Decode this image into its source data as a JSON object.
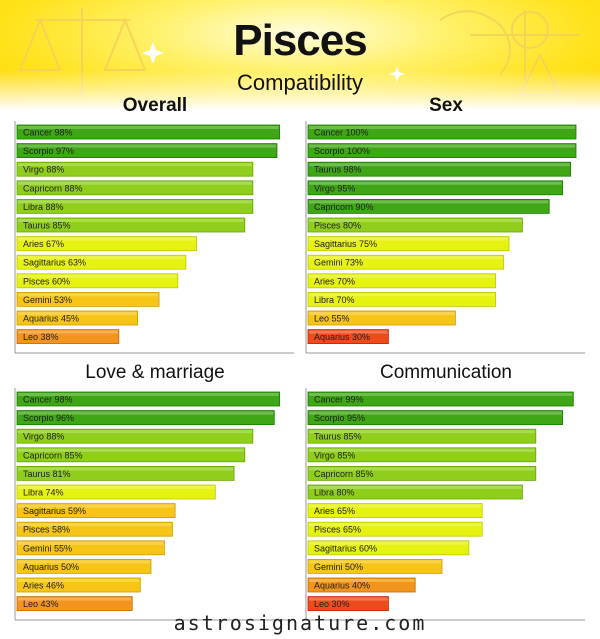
{
  "header": {
    "title": "Pisces",
    "subtitle": "Compatibility"
  },
  "watermark": "astrosignature.com",
  "colors": {
    "high": "#3fa615",
    "mid_high": "#8fcf1c",
    "mid": "#e6f20f",
    "mid_low": "#f6c516",
    "low": "#f2941d",
    "lowest": "#ee4a1c"
  },
  "chart_data": [
    {
      "type": "bar",
      "orientation": "horizontal",
      "title": "Overall",
      "xlim": [
        0,
        100
      ],
      "bars": [
        {
          "sign": "Cancer",
          "value": 98,
          "label": "Cancer 98%"
        },
        {
          "sign": "Scorpio",
          "value": 97,
          "label": "Scorpio 97%"
        },
        {
          "sign": "Virgo",
          "value": 88,
          "label": "Virgo 88%"
        },
        {
          "sign": "Capricorn",
          "value": 88,
          "label": "Capricorn 88%"
        },
        {
          "sign": "Libra",
          "value": 88,
          "label": "Libra 88%"
        },
        {
          "sign": "Taurus",
          "value": 85,
          "label": "Taurus 85%"
        },
        {
          "sign": "Aries",
          "value": 67,
          "label": "Aries 67%"
        },
        {
          "sign": "Sagittarius",
          "value": 63,
          "label": "Sagittarius 63%"
        },
        {
          "sign": "Pisces",
          "value": 60,
          "label": "Pisces 60%"
        },
        {
          "sign": "Gemini",
          "value": 53,
          "label": "Gemini 53%"
        },
        {
          "sign": "Aquarius",
          "value": 45,
          "label": "Aquarius 45%"
        },
        {
          "sign": "Leo",
          "value": 38,
          "label": "Leo 38%"
        }
      ]
    },
    {
      "type": "bar",
      "orientation": "horizontal",
      "title": "Sex",
      "xlim": [
        0,
        100
      ],
      "bars": [
        {
          "sign": "Cancer",
          "value": 100,
          "label": "Cancer 100%"
        },
        {
          "sign": "Scorpio",
          "value": 100,
          "label": "Scorpio 100%"
        },
        {
          "sign": "Taurus",
          "value": 98,
          "label": "Taurus 98%"
        },
        {
          "sign": "Virgo",
          "value": 95,
          "label": "Virgo 95%"
        },
        {
          "sign": "Capricorn",
          "value": 90,
          "label": "Capricorn 90%"
        },
        {
          "sign": "Pisces",
          "value": 80,
          "label": "Pisces 80%"
        },
        {
          "sign": "Sagittarius",
          "value": 75,
          "label": "Sagittarius 75%"
        },
        {
          "sign": "Gemini",
          "value": 73,
          "label": "Gemini 73%"
        },
        {
          "sign": "Aries",
          "value": 70,
          "label": "Aries 70%"
        },
        {
          "sign": "Libra",
          "value": 70,
          "label": "Libra 70%"
        },
        {
          "sign": "Leo",
          "value": 55,
          "label": "Leo 55%"
        },
        {
          "sign": "Aquarius",
          "value": 30,
          "label": "Aquarius 30%"
        }
      ]
    },
    {
      "type": "bar",
      "orientation": "horizontal",
      "title": "Love & marriage",
      "xlim": [
        0,
        100
      ],
      "bars": [
        {
          "sign": "Cancer",
          "value": 98,
          "label": "Cancer 98%"
        },
        {
          "sign": "Scorpio",
          "value": 96,
          "label": "Scorpio 96%"
        },
        {
          "sign": "Virgo",
          "value": 88,
          "label": "Virgo 88%"
        },
        {
          "sign": "Capricorn",
          "value": 85,
          "label": "Capricorn 85%"
        },
        {
          "sign": "Taurus",
          "value": 81,
          "label": "Taurus 81%"
        },
        {
          "sign": "Libra",
          "value": 74,
          "label": "Libra 74%"
        },
        {
          "sign": "Sagittarius",
          "value": 59,
          "label": "Sagittarius 59%"
        },
        {
          "sign": "Pisces",
          "value": 58,
          "label": "Pisces 58%"
        },
        {
          "sign": "Gemini",
          "value": 55,
          "label": "Gemini 55%"
        },
        {
          "sign": "Aquarius",
          "value": 50,
          "label": "Aquarius 50%"
        },
        {
          "sign": "Aries",
          "value": 46,
          "label": "Aries 46%"
        },
        {
          "sign": "Leo",
          "value": 43,
          "label": "Leo 43%"
        }
      ]
    },
    {
      "type": "bar",
      "orientation": "horizontal",
      "title": "Communication",
      "xlim": [
        0,
        100
      ],
      "bars": [
        {
          "sign": "Cancer",
          "value": 99,
          "label": "Cancer 99%"
        },
        {
          "sign": "Scorpio",
          "value": 95,
          "label": "Scorpio 95%"
        },
        {
          "sign": "Taurus",
          "value": 85,
          "label": "Taurus 85%"
        },
        {
          "sign": "Virgo",
          "value": 85,
          "label": "Virgo 85%"
        },
        {
          "sign": "Capricorn",
          "value": 85,
          "label": "Capricorn 85%"
        },
        {
          "sign": "Libra",
          "value": 80,
          "label": "Libra 80%"
        },
        {
          "sign": "Aries",
          "value": 65,
          "label": "Aries 65%"
        },
        {
          "sign": "Pisces",
          "value": 65,
          "label": "Pisces 65%"
        },
        {
          "sign": "Sagittarius",
          "value": 60,
          "label": "Sagittarius 60%"
        },
        {
          "sign": "Gemini",
          "value": 50,
          "label": "Gemini 50%"
        },
        {
          "sign": "Aquarius",
          "value": 40,
          "label": "Aquarius 40%"
        },
        {
          "sign": "Leo",
          "value": 30,
          "label": "Leo 30%"
        }
      ]
    }
  ]
}
